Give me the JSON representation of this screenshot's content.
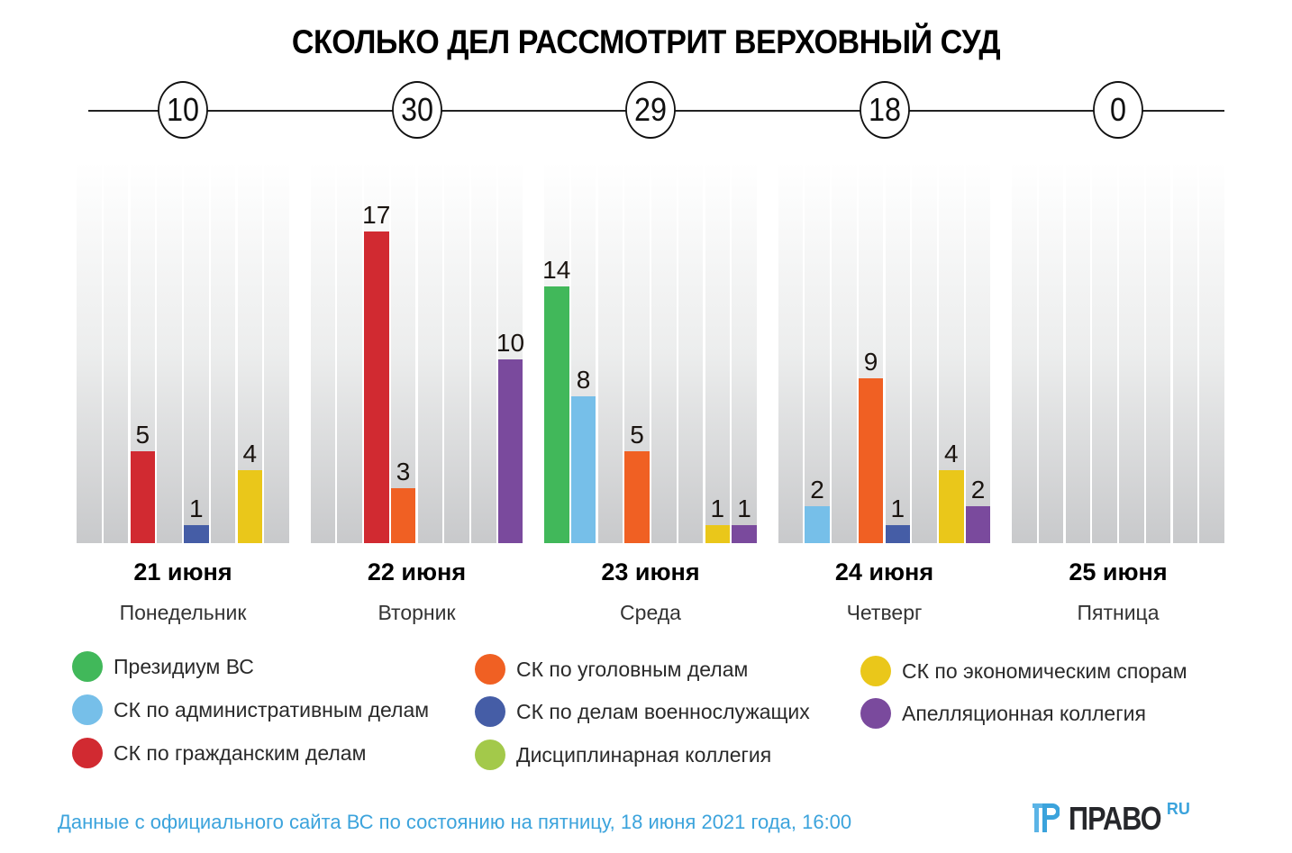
{
  "chart_data": {
    "type": "bar",
    "title": "СКОЛЬКО ДЕЛ РАССМОТРИТ ВЕРХОВНЫЙ СУД",
    "xlabel": "",
    "ylabel": "",
    "ylim": [
      0,
      17
    ],
    "grid": false,
    "legend_position": "bottom",
    "categories": [
      {
        "date": "21 июня",
        "weekday": "Понедельник",
        "total": 10
      },
      {
        "date": "22 июня",
        "weekday": "Вторник",
        "total": 30
      },
      {
        "date": "23 июня",
        "weekday": "Среда",
        "total": 29
      },
      {
        "date": "24 июня",
        "weekday": "Четверг",
        "total": 18
      },
      {
        "date": "25 июня",
        "weekday": "Пятница",
        "total": 0
      }
    ],
    "series": [
      {
        "name": "Президиум ВС",
        "color": "#41b85a",
        "values": [
          0,
          0,
          14,
          0,
          0
        ]
      },
      {
        "name": "СК по административным делам",
        "color": "#76bfe9",
        "values": [
          0,
          0,
          8,
          2,
          0
        ]
      },
      {
        "name": "СК по гражданским делам",
        "color": "#d12a31",
        "values": [
          5,
          17,
          0,
          0,
          0
        ]
      },
      {
        "name": "СК по уголовным делам",
        "color": "#f06023",
        "values": [
          0,
          3,
          5,
          9,
          0
        ]
      },
      {
        "name": "СК по делам военнослужащих",
        "color": "#455da6",
        "values": [
          1,
          0,
          0,
          1,
          0
        ]
      },
      {
        "name": "Дисциплинарная коллегия",
        "color": "#a3c94a",
        "values": [
          0,
          0,
          0,
          0,
          0
        ]
      },
      {
        "name": "СК по экономическим спорам",
        "color": "#eac71a",
        "values": [
          4,
          0,
          1,
          4,
          0
        ]
      },
      {
        "name": "Апелляционная коллегия",
        "color": "#7a4a9d",
        "values": [
          0,
          10,
          1,
          2,
          0
        ]
      }
    ]
  },
  "legend_layout": [
    [
      0,
      1,
      2
    ],
    [
      3,
      4,
      5
    ],
    [
      6,
      7
    ]
  ],
  "footer": {
    "source": "Данные с официального сайта ВС по состоянию на пятницу, 18 июня 2021 года, 16:00"
  },
  "logo": {
    "text": "ПРАВО",
    "suffix": "RU"
  }
}
